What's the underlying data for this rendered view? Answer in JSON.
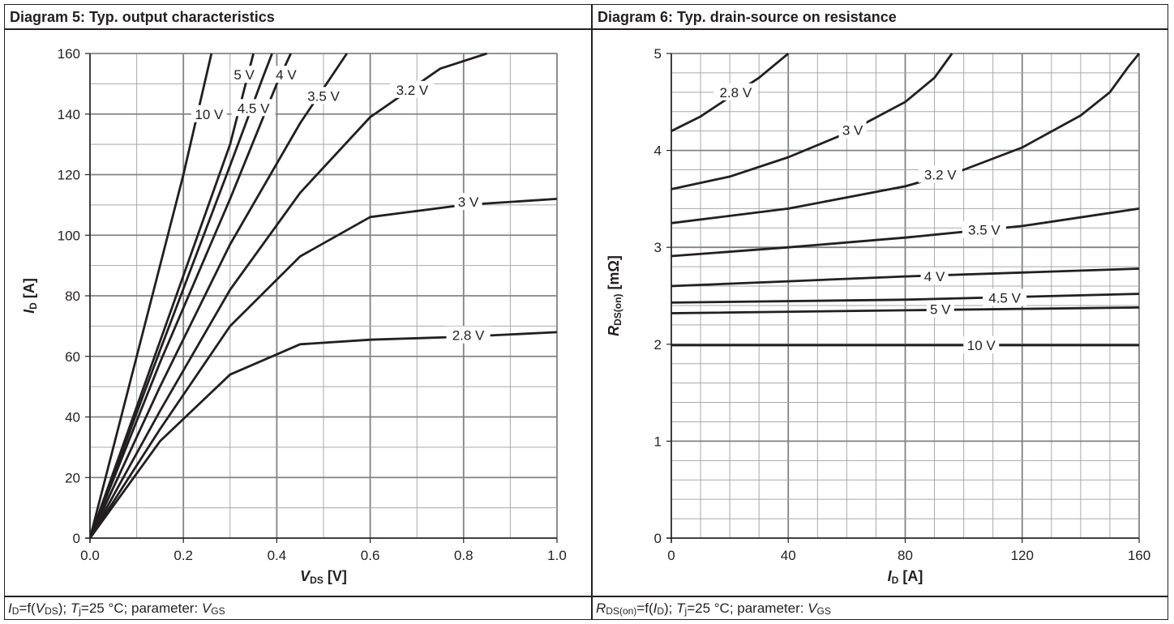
{
  "panels": [
    {
      "title": "Diagram 5: Typ. output characteristics"
    },
    {
      "title": "Diagram 6: Typ. drain-source on resistance"
    }
  ],
  "captions": [
    {
      "f1": "I",
      "s1": "D",
      "t1": "=f(",
      "f2": "V",
      "s2": "DS",
      "t2": "); ",
      "f3": "T",
      "s3": "j",
      "t3": "=25 °C; parameter: ",
      "f4": "V",
      "s4": "GS"
    },
    {
      "f1": "R",
      "s1": "DS(on)",
      "t1": "=f(",
      "f2": "I",
      "s2": "D",
      "t2": "); ",
      "f3": "T",
      "s3": "j",
      "t3": "=25 °C; parameter: ",
      "f4": "V",
      "s4": "GS"
    }
  ],
  "chart_data": [
    {
      "type": "line",
      "title": "Diagram 5: Typ. output characteristics",
      "xlabel": {
        "main": "V",
        "sub": "DS",
        "unit": " [V]"
      },
      "ylabel": {
        "main": "I",
        "sub": "D",
        "unit": " [A]"
      },
      "xlim": [
        0,
        1.0
      ],
      "ylim": [
        0,
        160
      ],
      "x_ticks": [
        "0.0",
        "0.2",
        "0.4",
        "0.6",
        "0.8",
        "1.0"
      ],
      "y_ticks": [
        "0",
        "20",
        "40",
        "60",
        "80",
        "100",
        "120",
        "140",
        "160"
      ],
      "grid": true,
      "series": [
        {
          "name": "10 V",
          "points": [
            [
              0,
              0
            ],
            [
              0.1,
              60
            ],
            [
              0.2,
              120
            ],
            [
              0.26,
              160
            ]
          ]
        },
        {
          "name": "5 V",
          "points": [
            [
              0,
              0
            ],
            [
              0.15,
              65
            ],
            [
              0.3,
              130
            ],
            [
              0.35,
              160
            ]
          ]
        },
        {
          "name": "4.5 V",
          "points": [
            [
              0,
              0
            ],
            [
              0.15,
              62
            ],
            [
              0.3,
              123
            ],
            [
              0.37,
              152
            ],
            [
              0.39,
              160
            ]
          ]
        },
        {
          "name": "4 V",
          "points": [
            [
              0,
              0
            ],
            [
              0.15,
              58
            ],
            [
              0.3,
              112
            ],
            [
              0.4,
              150
            ],
            [
              0.43,
              160
            ]
          ]
        },
        {
          "name": "3.5 V",
          "points": [
            [
              0,
              0
            ],
            [
              0.15,
              50
            ],
            [
              0.3,
              97
            ],
            [
              0.45,
              137
            ],
            [
              0.55,
              160
            ]
          ]
        },
        {
          "name": "3.2 V",
          "points": [
            [
              0,
              0
            ],
            [
              0.15,
              42
            ],
            [
              0.3,
              82
            ],
            [
              0.45,
              114
            ],
            [
              0.6,
              139
            ],
            [
              0.75,
              155
            ],
            [
              0.85,
              160
            ]
          ]
        },
        {
          "name": "3 V",
          "points": [
            [
              0,
              0
            ],
            [
              0.15,
              36
            ],
            [
              0.3,
              70
            ],
            [
              0.45,
              93
            ],
            [
              0.6,
              106
            ],
            [
              0.8,
              110
            ],
            [
              1.0,
              112
            ]
          ]
        },
        {
          "name": "2.8 V",
          "points": [
            [
              0,
              0
            ],
            [
              0.15,
              32
            ],
            [
              0.3,
              54
            ],
            [
              0.45,
              64
            ],
            [
              0.6,
              65.5
            ],
            [
              0.8,
              66.5
            ],
            [
              1.0,
              68
            ]
          ]
        }
      ],
      "annotations": [
        {
          "text": "10 V",
          "x": 0.255,
          "y": 140
        },
        {
          "text": "5 V",
          "x": 0.33,
          "y": 153
        },
        {
          "text": "4 V",
          "x": 0.42,
          "y": 153
        },
        {
          "text": "4.5 V",
          "x": 0.35,
          "y": 142
        },
        {
          "text": "3.5 V",
          "x": 0.5,
          "y": 146
        },
        {
          "text": "3.2 V",
          "x": 0.69,
          "y": 148
        },
        {
          "text": "3 V",
          "x": 0.81,
          "y": 111
        },
        {
          "text": "2.8 V",
          "x": 0.81,
          "y": 67
        }
      ]
    },
    {
      "type": "line",
      "title": "Diagram 6: Typ. drain-source on resistance",
      "xlabel": {
        "main": "I",
        "sub": "D",
        "unit": " [A]"
      },
      "ylabel": {
        "main": "R",
        "sub": "DS(on)",
        "unit": " [mΩ]"
      },
      "xlim": [
        0,
        160
      ],
      "ylim": [
        0,
        5
      ],
      "x_ticks": [
        "0",
        "40",
        "80",
        "120",
        "160"
      ],
      "y_ticks": [
        "0",
        "1",
        "2",
        "3",
        "4",
        "5"
      ],
      "grid": true,
      "series": [
        {
          "name": "2.8 V",
          "points": [
            [
              0,
              4.2
            ],
            [
              10,
              4.35
            ],
            [
              20,
              4.55
            ],
            [
              30,
              4.75
            ],
            [
              40,
              5.0
            ]
          ]
        },
        {
          "name": "3 V",
          "points": [
            [
              0,
              3.6
            ],
            [
              20,
              3.73
            ],
            [
              40,
              3.93
            ],
            [
              60,
              4.18
            ],
            [
              80,
              4.5
            ],
            [
              90,
              4.75
            ],
            [
              96,
              5.0
            ]
          ]
        },
        {
          "name": "3.2 V",
          "points": [
            [
              0,
              3.25
            ],
            [
              40,
              3.4
            ],
            [
              80,
              3.63
            ],
            [
              100,
              3.8
            ],
            [
              120,
              4.03
            ],
            [
              140,
              4.36
            ],
            [
              150,
              4.6
            ],
            [
              156,
              4.85
            ],
            [
              160,
              5.0
            ]
          ]
        },
        {
          "name": "3.5 V",
          "points": [
            [
              0,
              2.91
            ],
            [
              40,
              3.0
            ],
            [
              80,
              3.1
            ],
            [
              120,
              3.22
            ],
            [
              160,
              3.4
            ]
          ]
        },
        {
          "name": "4 V",
          "points": [
            [
              0,
              2.6
            ],
            [
              40,
              2.65
            ],
            [
              80,
              2.7
            ],
            [
              120,
              2.74
            ],
            [
              160,
              2.78
            ]
          ]
        },
        {
          "name": "4.5 V",
          "points": [
            [
              0,
              2.43
            ],
            [
              80,
              2.46
            ],
            [
              160,
              2.52
            ]
          ]
        },
        {
          "name": "5 V",
          "points": [
            [
              0,
              2.32
            ],
            [
              80,
              2.35
            ],
            [
              160,
              2.38
            ]
          ]
        },
        {
          "name": "10 V",
          "points": [
            [
              0,
              1.99
            ],
            [
              80,
              1.99
            ],
            [
              160,
              1.99
            ]
          ]
        }
      ],
      "annotations": [
        {
          "text": "2.8 V",
          "x": 22,
          "y": 4.6
        },
        {
          "text": "3 V",
          "x": 62,
          "y": 4.21
        },
        {
          "text": "3.2 V",
          "x": 92,
          "y": 3.75
        },
        {
          "text": "3.5 V",
          "x": 107,
          "y": 3.18
        },
        {
          "text": "4 V",
          "x": 90,
          "y": 2.7
        },
        {
          "text": "4.5 V",
          "x": 114,
          "y": 2.48
        },
        {
          "text": "5 V",
          "x": 92,
          "y": 2.36
        },
        {
          "text": "10 V",
          "x": 106,
          "y": 1.99
        }
      ]
    }
  ]
}
